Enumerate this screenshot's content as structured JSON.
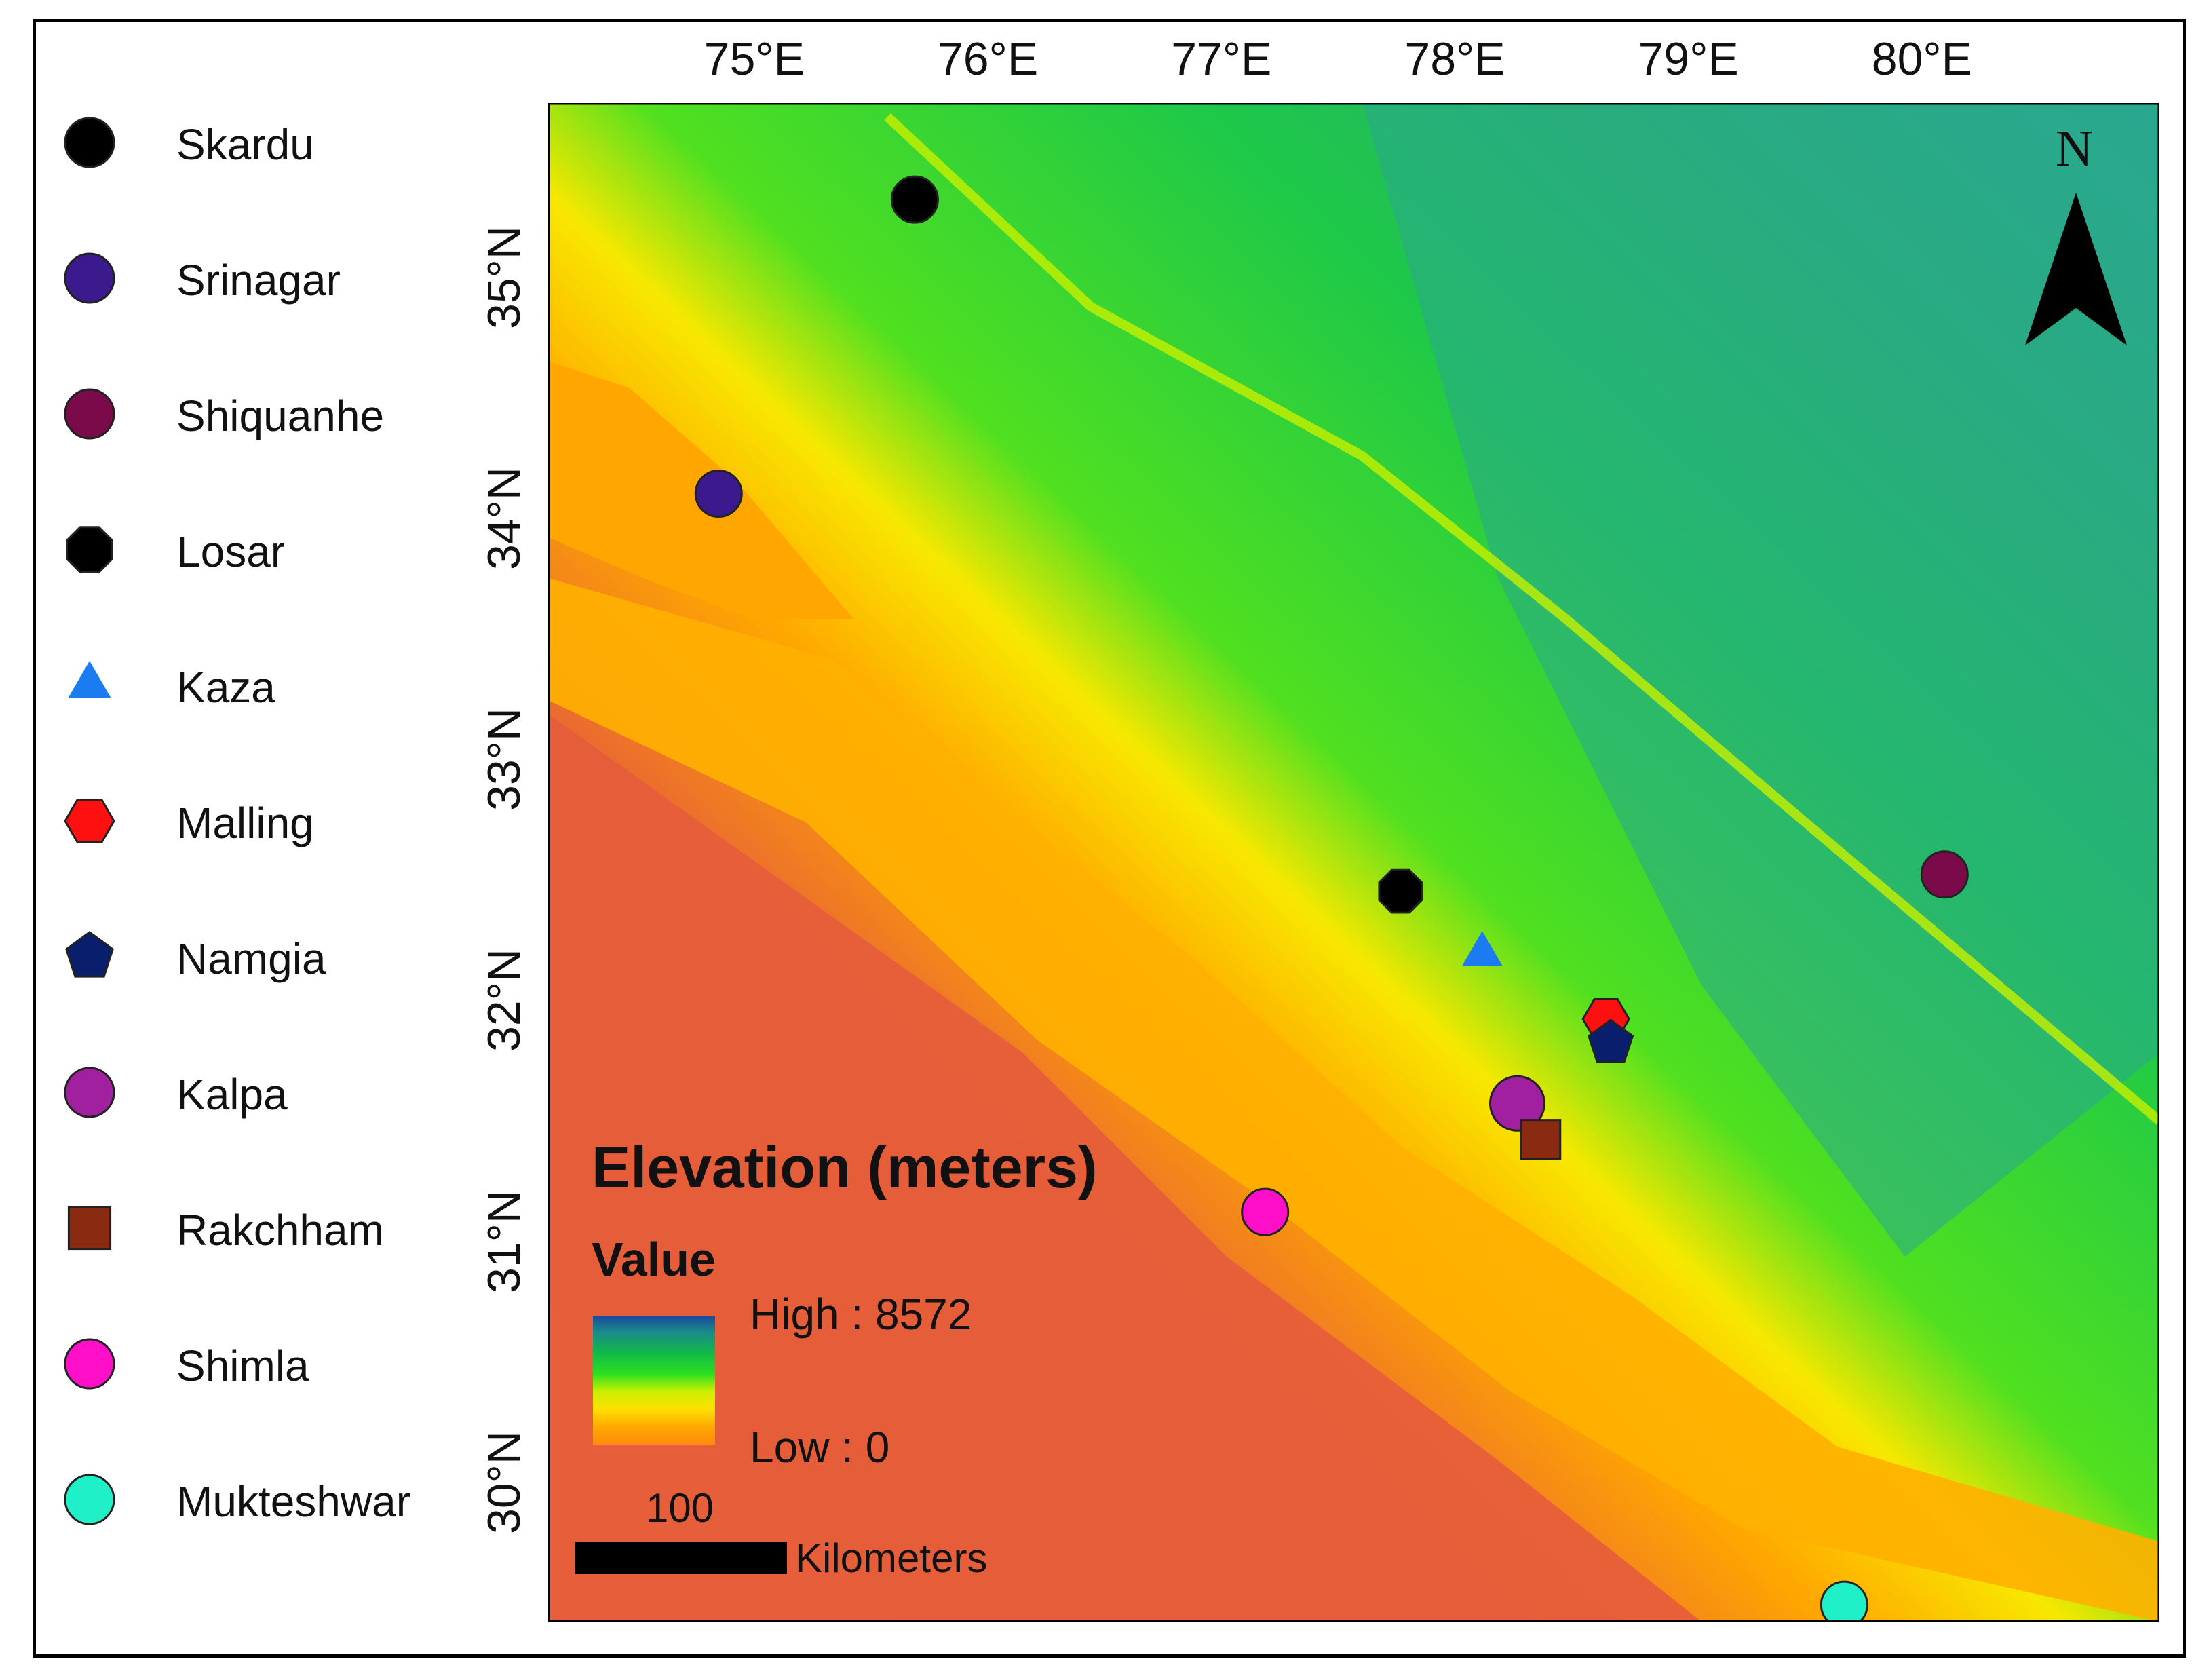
{
  "legend": {
    "items": [
      {
        "label": "Skardu",
        "shape": "circle",
        "color": "#000000"
      },
      {
        "label": "Srinagar",
        "shape": "circle",
        "color": "#3a1a8c"
      },
      {
        "label": "Shiquanhe",
        "shape": "circle",
        "color": "#7a0a4a"
      },
      {
        "label": "Losar",
        "shape": "octagon",
        "color": "#000000"
      },
      {
        "label": "Kaza",
        "shape": "triangle",
        "color": "#1a7cf0"
      },
      {
        "label": "Malling",
        "shape": "hexagon",
        "color": "#ff1010"
      },
      {
        "label": "Namgia",
        "shape": "pentagon",
        "color": "#0a1e6e"
      },
      {
        "label": "Kalpa",
        "shape": "circle",
        "color": "#a020a0"
      },
      {
        "label": "Rakchham",
        "shape": "square",
        "color": "#8a2a10"
      },
      {
        "label": "Shimla",
        "shape": "circle",
        "color": "#ff10c8"
      },
      {
        "label": "Mukteshwar",
        "shape": "circle",
        "color": "#20f0c8"
      }
    ]
  },
  "axes": {
    "lon_labels": [
      "75°E",
      "76°E",
      "77°E",
      "78°E",
      "79°E",
      "80°E"
    ],
    "lat_labels": [
      "35°N",
      "34°N",
      "33°N",
      "32°N",
      "31°N",
      "30°N"
    ],
    "lon_range": [
      74.1,
      81.0
    ],
    "lat_range": [
      29.4,
      35.7
    ]
  },
  "stations": [
    {
      "name": "Skardu",
      "lon": 75.67,
      "lat": 35.3
    },
    {
      "name": "Srinagar",
      "lon": 74.83,
      "lat": 34.08
    },
    {
      "name": "Shiquanhe",
      "lon": 80.08,
      "lat": 32.5
    },
    {
      "name": "Losar",
      "lon": 77.75,
      "lat": 32.43
    },
    {
      "name": "Kaza",
      "lon": 78.1,
      "lat": 32.17
    },
    {
      "name": "Malling",
      "lon": 78.63,
      "lat": 31.9
    },
    {
      "name": "Namgia",
      "lon": 78.65,
      "lat": 31.8
    },
    {
      "name": "Kalpa",
      "lon": 78.25,
      "lat": 31.55
    },
    {
      "name": "Rakchham",
      "lon": 78.35,
      "lat": 31.4
    },
    {
      "name": "Shimla",
      "lon": 77.17,
      "lat": 31.1
    },
    {
      "name": "Mukteshwar",
      "lon": 79.65,
      "lat": 29.47
    }
  ],
  "elevation_legend": {
    "title": "Elevation (meters)",
    "value_label": "Value",
    "high": "High : 8572",
    "low": "Low : 0",
    "high_value": 8572,
    "low_value": 0
  },
  "scale_bar": {
    "value": "100",
    "unit": "Kilometers"
  },
  "north_arrow": {
    "label": "N"
  }
}
